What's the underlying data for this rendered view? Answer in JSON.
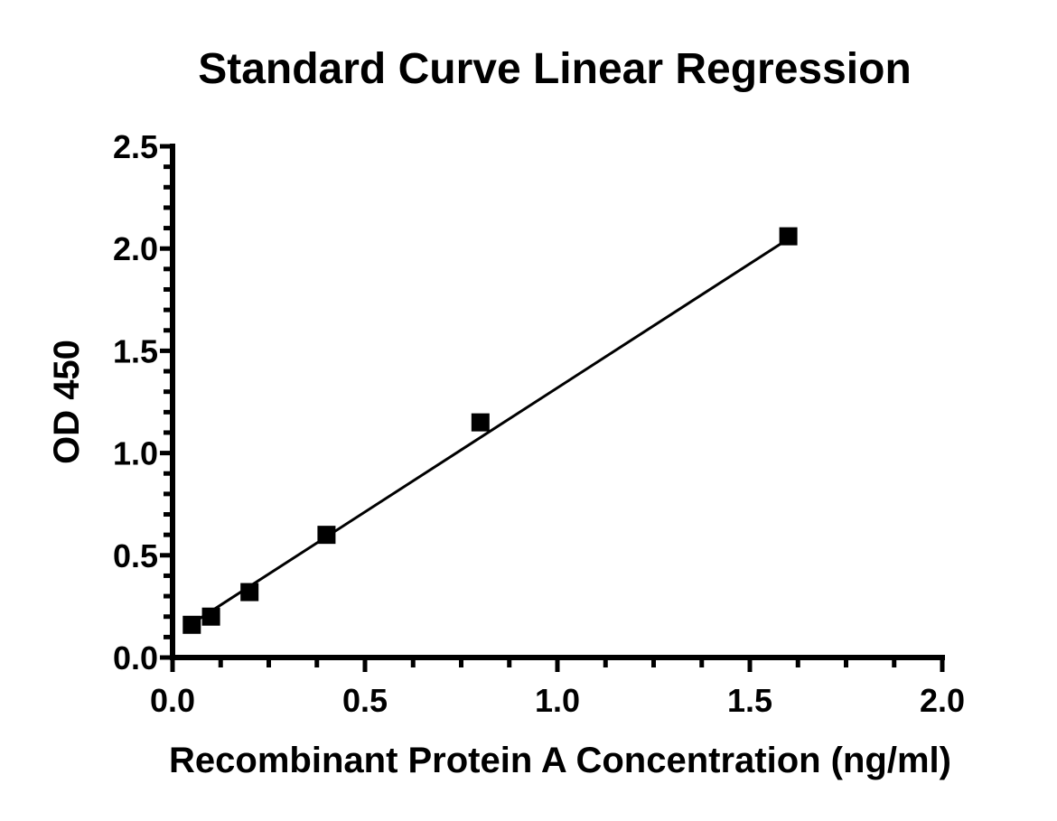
{
  "chart_data": {
    "type": "scatter",
    "title": "Standard Curve Linear Regression",
    "xlabel": "Recombinant Protein A Concentration (ng/ml)",
    "ylabel": "OD 450",
    "xlim": [
      0,
      2.0
    ],
    "ylim": [
      0,
      2.5
    ],
    "x_ticks": [
      "0.0",
      "0.5",
      "1.0",
      "1.5",
      "2.0"
    ],
    "y_ticks": [
      "0.0",
      "0.5",
      "1.0",
      "1.5",
      "2.0",
      "2.5"
    ],
    "grid": false,
    "marker": "square",
    "color": "#000000",
    "series": [
      {
        "x": [
          0.05,
          0.1,
          0.2,
          0.4,
          0.8,
          1.6
        ],
        "y": [
          0.16,
          0.2,
          0.32,
          0.6,
          1.15,
          2.06
        ]
      }
    ],
    "fit_line": {
      "type": "linear",
      "x_range": [
        0.05,
        1.6
      ],
      "slope": 1.214,
      "intercept": 0.105
    }
  }
}
